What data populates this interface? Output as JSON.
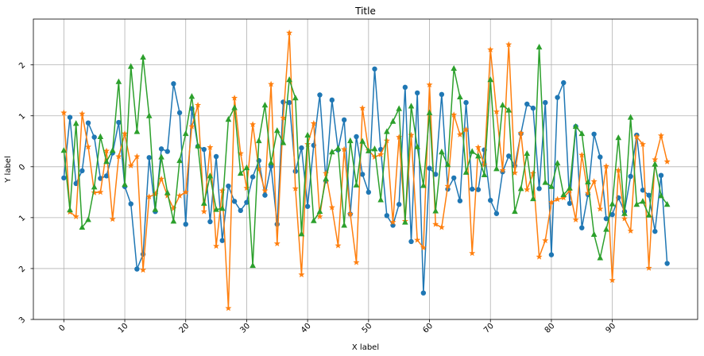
{
  "chart_data": {
    "type": "line",
    "title": "Title",
    "xlabel": "X label",
    "ylabel": "Y label",
    "xlim": [
      -5,
      104
    ],
    "ylim": [
      -3,
      2.9
    ],
    "grid": true,
    "x_ticks": [
      0,
      10,
      20,
      30,
      40,
      50,
      60,
      70,
      80,
      90
    ],
    "x_tick_labels": [
      "0",
      "10",
      "20",
      "30",
      "40",
      "50",
      "60",
      "70",
      "80",
      "90"
    ],
    "y_ticks": [
      2,
      1,
      0,
      -1,
      -2,
      -3
    ],
    "y_tick_labels": [
      "2",
      "1",
      "0",
      "1",
      "2",
      "3"
    ],
    "x": [
      0,
      1,
      2,
      3,
      4,
      5,
      6,
      7,
      8,
      9,
      10,
      11,
      12,
      13,
      14,
      15,
      16,
      17,
      18,
      19,
      20,
      21,
      22,
      23,
      24,
      25,
      26,
      27,
      28,
      29,
      30,
      31,
      32,
      33,
      34,
      35,
      36,
      37,
      38,
      39,
      40,
      41,
      42,
      43,
      44,
      45,
      46,
      47,
      48,
      49,
      50,
      51,
      52,
      53,
      54,
      55,
      56,
      57,
      58,
      59,
      60,
      61,
      62,
      63,
      64,
      65,
      66,
      67,
      68,
      69,
      70,
      71,
      72,
      73,
      74,
      75,
      76,
      77,
      78,
      79,
      80,
      81,
      82,
      83,
      84,
      85,
      86,
      87,
      88,
      89,
      90,
      91,
      92,
      93,
      94,
      95,
      96,
      97,
      98,
      99
    ],
    "series": [
      {
        "color": "#1f77b4",
        "marker": "circle",
        "values": [
          -0.22,
          0.97,
          -0.33,
          -0.08,
          0.86,
          0.58,
          -0.23,
          -0.18,
          0.27,
          0.87,
          -0.39,
          -0.73,
          -2.01,
          -1.72,
          0.18,
          -0.88,
          0.35,
          0.3,
          1.63,
          1.06,
          -1.13,
          1.14,
          0.4,
          0.34,
          -1.08,
          0.2,
          -1.45,
          -0.38,
          -0.68,
          -0.86,
          -0.7,
          -0.2,
          0.12,
          -0.56,
          0.01,
          -1.13,
          1.27,
          1.26,
          -0.09,
          0.37,
          -0.78,
          0.42,
          1.41,
          -0.28,
          1.31,
          0.33,
          0.92,
          -0.93,
          0.59,
          -0.15,
          -0.5,
          1.92,
          0.34,
          -0.96,
          -1.15,
          -0.74,
          1.56,
          -1.47,
          1.45,
          -2.48,
          -0.03,
          -0.15,
          1.42,
          -0.44,
          -0.22,
          -0.67,
          1.26,
          -0.44,
          -0.45,
          0.33,
          -0.66,
          -0.92,
          -0.1,
          0.21,
          0.02,
          0.65,
          1.23,
          1.15,
          -0.43,
          1.26,
          -1.73,
          1.36,
          1.65,
          -0.72,
          0.79,
          -1.2,
          -0.55,
          0.64,
          0.19,
          -1.02,
          -0.94,
          -0.61,
          -0.88,
          -0.19,
          0.62,
          -0.46,
          -0.56,
          -1.27,
          -0.17,
          -1.9
        ]
      },
      {
        "color": "#ff7f0e",
        "marker": "star",
        "values": [
          1.06,
          -0.89,
          -0.98,
          1.04,
          0.39,
          -0.51,
          -0.5,
          0.31,
          -1.03,
          0.2,
          0.65,
          0.02,
          0.2,
          -2.03,
          -0.59,
          -0.54,
          -0.24,
          -0.57,
          -0.82,
          -0.57,
          -0.5,
          0.79,
          1.21,
          -0.88,
          0.38,
          -1.56,
          -0.47,
          -2.78,
          1.35,
          0.26,
          -0.42,
          0.83,
          -0.05,
          -0.47,
          1.62,
          -1.51,
          0.96,
          2.63,
          -0.43,
          -2.12,
          0.44,
          0.85,
          -0.98,
          -0.13,
          -0.8,
          -1.55,
          0.34,
          -0.93,
          -1.88,
          1.15,
          0.32,
          0.19,
          0.24,
          0.51,
          -1.09,
          0.58,
          -1.07,
          0.62,
          -1.44,
          -1.59,
          1.61,
          -1.13,
          -1.19,
          -0.38,
          1.02,
          0.63,
          0.73,
          -1.7,
          0.38,
          0.04,
          2.3,
          1.08,
          -0.07,
          2.4,
          -0.12,
          0.66,
          -0.45,
          -0.13,
          -1.77,
          -1.45,
          -0.7,
          -0.64,
          -0.61,
          -0.47,
          -1.04,
          0.23,
          -0.52,
          -0.29,
          -0.83,
          0.01,
          -2.23,
          -0.07,
          -1.02,
          -1.26,
          0.59,
          0.44,
          -1.99,
          0.14,
          0.61,
          0.1
        ]
      },
      {
        "color": "#2ca02c",
        "marker": "triangle",
        "values": [
          0.32,
          -0.85,
          0.85,
          -1.19,
          -1.04,
          -0.4,
          0.59,
          0.1,
          0.32,
          1.67,
          -0.35,
          1.97,
          0.69,
          2.15,
          1.0,
          -0.84,
          0.19,
          -0.51,
          -1.07,
          0.12,
          0.65,
          1.38,
          0.41,
          -0.72,
          -0.18,
          -0.84,
          -0.82,
          0.93,
          1.16,
          -0.13,
          -0.02,
          -1.94,
          0.51,
          1.21,
          0.08,
          0.71,
          0.47,
          1.71,
          1.35,
          -1.32,
          0.62,
          -1.06,
          -0.88,
          -0.24,
          0.29,
          0.36,
          -1.15,
          0.51,
          -0.36,
          0.5,
          0.31,
          0.35,
          -0.65,
          0.69,
          0.89,
          1.14,
          -1.09,
          1.19,
          0.39,
          -0.37,
          1.06,
          -0.87,
          0.29,
          0.04,
          1.93,
          1.37,
          -0.11,
          0.3,
          0.21,
          -0.16,
          1.71,
          -0.04,
          1.21,
          1.11,
          -0.88,
          -0.43,
          0.26,
          -0.63,
          2.35,
          -0.31,
          -0.39,
          0.07,
          -0.55,
          -0.42,
          0.79,
          0.65,
          -0.3,
          -1.33,
          -1.79,
          -1.23,
          -0.73,
          0.57,
          -0.92,
          0.97,
          -0.74,
          -0.68,
          -0.95,
          0.05,
          -0.57,
          -0.74
        ]
      }
    ]
  }
}
